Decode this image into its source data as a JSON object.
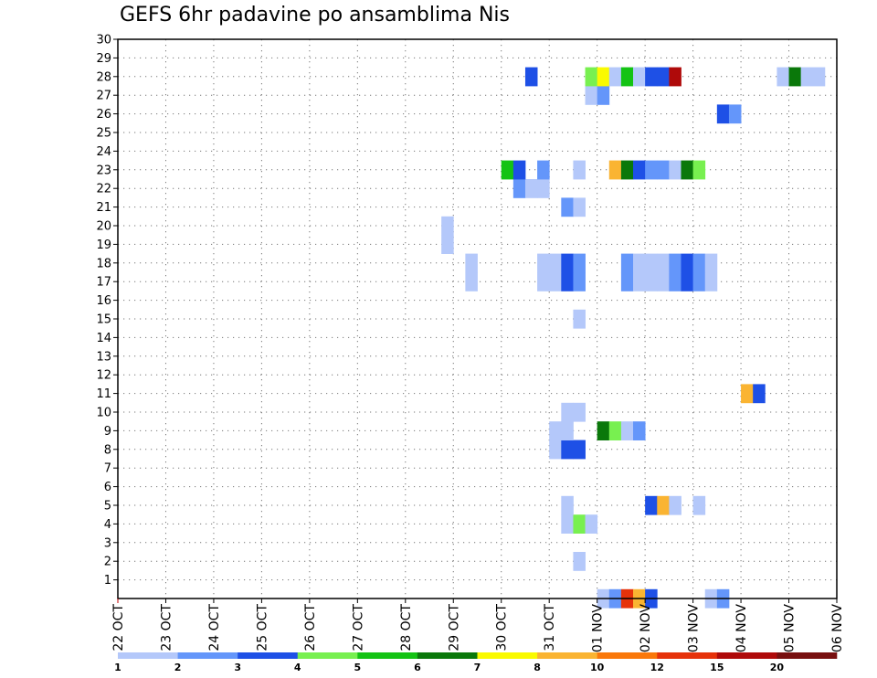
{
  "chart_data": {
    "type": "heatmap",
    "title": "GEFS 6hr padavine po ansamblima Nis",
    "x_tick_labels": [
      "22 OCT",
      "23 OCT",
      "24 OCT",
      "25 OCT",
      "26 OCT",
      "27 OCT",
      "28 OCT",
      "29 OCT",
      "30 OCT",
      "31 OCT",
      "01 NOV",
      "02 NOV",
      "03 NOV",
      "04 NOV",
      "05 NOV",
      "06 NOV"
    ],
    "y_tick_labels": [
      "1",
      "2",
      "3",
      "4",
      "5",
      "6",
      "7",
      "8",
      "9",
      "10",
      "11",
      "12",
      "13",
      "14",
      "15",
      "16",
      "17",
      "18",
      "19",
      "20",
      "21",
      "22",
      "23",
      "24",
      "25",
      "26",
      "27",
      "28",
      "29",
      "30"
    ],
    "x_range_days": [
      0,
      15
    ],
    "y_range": [
      0,
      30
    ],
    "grid": true,
    "colorbar": {
      "placement": "bottom",
      "labels": [
        "1",
        "2",
        "3",
        "4",
        "5",
        "6",
        "7",
        "8",
        "10",
        "12",
        "15",
        "20"
      ],
      "colors": [
        "#b4c8fa",
        "#6496fa",
        "#1e50e6",
        "#78f050",
        "#14c314",
        "#0a780a",
        "#fafa00",
        "#fab432",
        "#fa780a",
        "#e6320a",
        "#af0a0a",
        "#781010"
      ]
    },
    "points": [
      [
        10.0,
        0,
        1
      ],
      [
        10.25,
        0,
        2
      ],
      [
        10.5,
        0,
        12
      ],
      [
        10.75,
        0,
        8
      ],
      [
        11.0,
        0,
        3
      ],
      [
        12.25,
        0,
        1
      ],
      [
        12.5,
        0,
        2
      ],
      [
        9.5,
        2,
        1
      ],
      [
        9.25,
        4,
        1
      ],
      [
        9.5,
        4,
        4
      ],
      [
        9.75,
        4,
        1
      ],
      [
        9.25,
        5,
        1
      ],
      [
        11.0,
        5,
        3
      ],
      [
        11.25,
        5,
        8
      ],
      [
        11.5,
        5,
        1
      ],
      [
        12.0,
        5,
        1
      ],
      [
        9.0,
        8,
        1
      ],
      [
        9.25,
        8,
        3
      ],
      [
        9.5,
        8,
        3
      ],
      [
        9.0,
        9,
        1
      ],
      [
        9.25,
        9,
        1
      ],
      [
        10.0,
        9,
        6
      ],
      [
        10.25,
        9,
        4
      ],
      [
        10.5,
        9,
        1
      ],
      [
        10.75,
        9,
        2
      ],
      [
        9.25,
        10,
        1
      ],
      [
        9.5,
        10,
        1
      ],
      [
        13.0,
        11,
        8
      ],
      [
        13.25,
        11,
        3
      ],
      [
        9.5,
        15,
        1
      ],
      [
        7.25,
        17,
        1
      ],
      [
        8.75,
        17,
        1
      ],
      [
        9.0,
        17,
        1
      ],
      [
        9.25,
        17,
        3
      ],
      [
        9.5,
        17,
        2
      ],
      [
        10.5,
        17,
        2
      ],
      [
        10.75,
        17,
        1
      ],
      [
        11.0,
        17,
        1
      ],
      [
        11.25,
        17,
        1
      ],
      [
        11.5,
        17,
        2
      ],
      [
        11.75,
        17,
        3
      ],
      [
        12.0,
        17,
        2
      ],
      [
        12.25,
        17,
        1
      ],
      [
        7.25,
        18,
        1
      ],
      [
        8.75,
        18,
        1
      ],
      [
        9.0,
        18,
        1
      ],
      [
        9.25,
        18,
        3
      ],
      [
        9.5,
        18,
        2
      ],
      [
        10.5,
        18,
        2
      ],
      [
        10.75,
        18,
        1
      ],
      [
        11.0,
        18,
        1
      ],
      [
        11.25,
        18,
        1
      ],
      [
        11.5,
        18,
        2
      ],
      [
        11.75,
        18,
        3
      ],
      [
        12.0,
        18,
        2
      ],
      [
        12.25,
        18,
        1
      ],
      [
        6.75,
        19,
        1
      ],
      [
        6.75,
        20,
        1
      ],
      [
        9.25,
        21,
        2
      ],
      [
        9.5,
        21,
        1
      ],
      [
        8.25,
        22,
        2
      ],
      [
        8.5,
        22,
        1
      ],
      [
        8.75,
        22,
        1
      ],
      [
        8.0,
        23,
        5
      ],
      [
        8.25,
        23,
        3
      ],
      [
        8.75,
        23,
        2
      ],
      [
        9.5,
        23,
        1
      ],
      [
        10.25,
        23,
        8
      ],
      [
        10.5,
        23,
        6
      ],
      [
        10.75,
        23,
        3
      ],
      [
        11.0,
        23,
        2
      ],
      [
        11.25,
        23,
        2
      ],
      [
        11.5,
        23,
        1
      ],
      [
        11.75,
        23,
        6
      ],
      [
        12.0,
        23,
        4
      ],
      [
        12.5,
        26,
        3
      ],
      [
        12.75,
        26,
        2
      ],
      [
        9.75,
        27,
        1
      ],
      [
        10.0,
        27,
        2
      ],
      [
        8.5,
        28,
        3
      ],
      [
        9.75,
        28,
        4
      ],
      [
        10.0,
        28,
        7
      ],
      [
        10.25,
        28,
        1
      ],
      [
        10.5,
        28,
        5
      ],
      [
        10.75,
        28,
        1
      ],
      [
        11.0,
        28,
        3
      ],
      [
        11.25,
        28,
        3
      ],
      [
        11.5,
        28,
        15
      ],
      [
        13.75,
        28,
        1
      ],
      [
        14.0,
        28,
        6
      ],
      [
        14.25,
        28,
        1
      ],
      [
        14.5,
        28,
        1
      ]
    ]
  }
}
